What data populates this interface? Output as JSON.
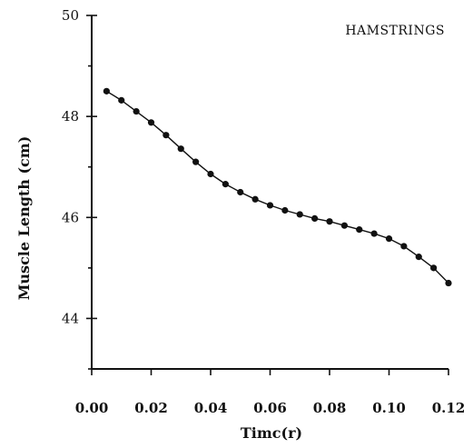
{
  "chart_data": {
    "type": "line",
    "title": "HAMSTRINGS",
    "xlabel": "Timc(r)",
    "ylabel": "Muscle Length (cm)",
    "xlim": [
      0,
      0.12
    ],
    "ylim": [
      43,
      50
    ],
    "x_ticks": [
      0.0,
      0.02,
      0.04,
      0.06,
      0.08,
      0.1,
      0.12
    ],
    "x_tick_labels": [
      "0.00",
      "0.02",
      "0.04",
      "0.06",
      "0.08",
      "0.10",
      "0.12"
    ],
    "y_ticks": [
      44,
      46,
      48,
      50
    ],
    "y_tick_labels": [
      "44",
      "46",
      "48",
      "50"
    ],
    "grid": false,
    "series": [
      {
        "x": [
          0.005,
          0.01,
          0.015,
          0.02,
          0.025,
          0.03,
          0.035,
          0.04,
          0.045,
          0.05,
          0.055,
          0.06,
          0.065,
          0.07,
          0.075,
          0.08,
          0.085,
          0.09,
          0.095,
          0.1,
          0.105,
          0.11,
          0.115,
          0.12
        ],
        "y": [
          48.5,
          48.32,
          48.1,
          47.88,
          47.63,
          47.36,
          47.1,
          46.86,
          46.66,
          46.5,
          46.36,
          46.24,
          46.14,
          46.06,
          45.98,
          45.92,
          45.84,
          45.76,
          45.68,
          45.58,
          45.43,
          45.22,
          45.0,
          44.7
        ]
      }
    ]
  }
}
